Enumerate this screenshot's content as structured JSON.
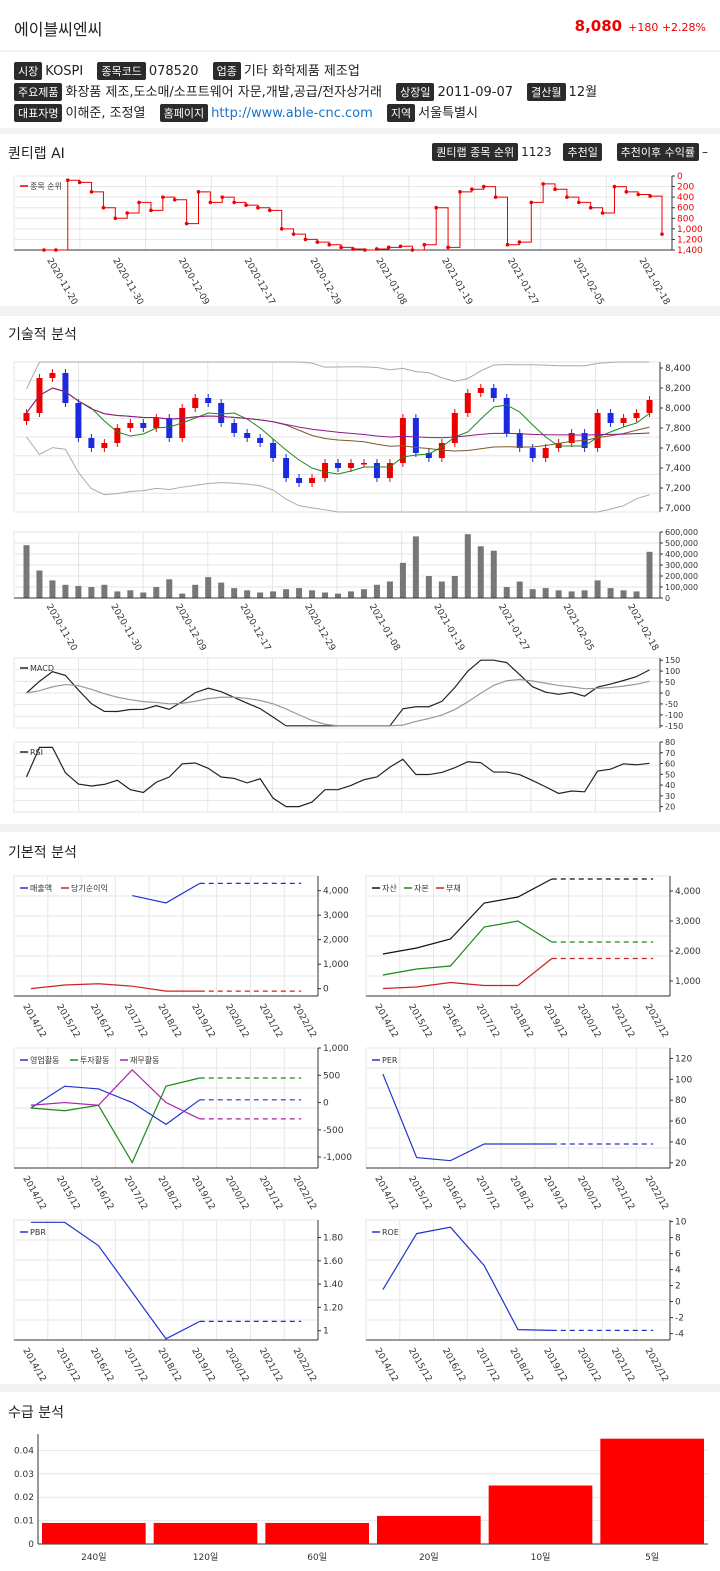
{
  "header": {
    "name": "에이블씨엔씨",
    "price": "8,080",
    "change": "+180 +2.28%"
  },
  "info": {
    "market_label": "시장",
    "market": "KOSPI",
    "code_label": "종목코드",
    "code": "078520",
    "industry_label": "업종",
    "industry": "기타 화학제품 제조업",
    "products_label": "주요제품",
    "products": "화장품 제조,도소매/소프트웨어 자문,개발,공급/전자상거래",
    "listed_label": "상장일",
    "listed": "2011-09-07",
    "fiscal_label": "결산월",
    "fiscal": "12월",
    "ceo_label": "대표자명",
    "ceo": "이해준, 조정열",
    "homepage_label": "홈페이지",
    "homepage": "http://www.able-cnc.com",
    "region_label": "지역",
    "region": "서울특별시"
  },
  "quant": {
    "title": "퀀티랩 AI",
    "rank_label": "퀀티랩 종목 순위",
    "rank": "1123",
    "rec_date_label": "추천일",
    "rec_return_label": "추천이후 수익률",
    "rec_return": "–"
  },
  "sections": {
    "tech": "기술적 분석",
    "fund": "기본적 분석",
    "supply": "수급 분석"
  },
  "dates": [
    "2020-11-20",
    "2020-11-30",
    "2020-12-09",
    "2020-12-17",
    "2020-12-29",
    "2021-01-08",
    "2021-01-19",
    "2021-01-27",
    "2021-02-05",
    "2021-02-18"
  ],
  "years": [
    "2014/12",
    "2015/12",
    "2016/12",
    "2017/12",
    "2018/12",
    "2019/12",
    "2020/12",
    "2021/12",
    "2022/12"
  ],
  "chart_data": [
    {
      "type": "line",
      "legend": [
        "종목 순위"
      ],
      "y_ticks": [
        "0",
        "200",
        "400",
        "600",
        "800",
        "1,000",
        "1,200",
        "1,400"
      ],
      "ylim": [
        0,
        1400
      ],
      "inverted": true,
      "series": [
        {
          "name": "종목 순위",
          "values": [
            1400,
            1450,
            80,
            120,
            300,
            600,
            800,
            700,
            500,
            650,
            400,
            450,
            900,
            300,
            500,
            400,
            500,
            550,
            600,
            650,
            1000,
            1100,
            1200,
            1250,
            1300,
            1350,
            1380,
            1400,
            1380,
            1350,
            1330,
            1400,
            1300,
            600,
            1350,
            300,
            250,
            200,
            400,
            1300,
            1250,
            500,
            150,
            250,
            400,
            500,
            600,
            700,
            200,
            300,
            350,
            380,
            1100
          ]
        }
      ]
    },
    {
      "type": "candlestick",
      "y_ticks": [
        "7,000",
        "7,200",
        "7,400",
        "7,600",
        "7,800",
        "8,000",
        "8,200",
        "8,400"
      ],
      "ylim": [
        6960,
        8460
      ],
      "closes": [
        7950,
        8300,
        8350,
        8050,
        7700,
        7600,
        7650,
        7800,
        7850,
        7800,
        7900,
        7700,
        8000,
        8100,
        8050,
        7850,
        7750,
        7700,
        7650,
        7500,
        7300,
        7250,
        7300,
        7450,
        7400,
        7450,
        7450,
        7300,
        7450,
        7900,
        7550,
        7500,
        7650,
        7950,
        8150,
        8200,
        8100,
        7750,
        7600,
        7500,
        7600,
        7650,
        7750,
        7600,
        7950,
        7850,
        7900,
        7950,
        8080
      ],
      "volume_ticks": [
        "0",
        "100,000",
        "200,000",
        "300,000",
        "400,000",
        "500,000",
        "600,000"
      ],
      "volumes": [
        480000,
        250000,
        160000,
        120000,
        110000,
        100000,
        120000,
        60000,
        70000,
        50000,
        100000,
        170000,
        40000,
        120000,
        190000,
        140000,
        90000,
        70000,
        50000,
        60000,
        80000,
        90000,
        70000,
        50000,
        40000,
        60000,
        80000,
        120000,
        150000,
        320000,
        560000,
        200000,
        150000,
        200000,
        580000,
        470000,
        430000,
        100000,
        150000,
        80000,
        90000,
        70000,
        60000,
        70000,
        160000,
        90000,
        70000,
        60000,
        420000
      ]
    },
    {
      "type": "line",
      "legend": [
        "MACD"
      ],
      "y_ticks": [
        "-150",
        "-100",
        "-50",
        "0",
        "50",
        "100",
        "150"
      ],
      "ylim": [
        -160,
        160
      ]
    },
    {
      "type": "line",
      "legend": [
        "RSI"
      ],
      "y_ticks": [
        "20",
        "30",
        "40",
        "50",
        "60",
        "70",
        "80"
      ],
      "ylim": [
        15,
        80
      ]
    },
    {
      "type": "line",
      "legend": [
        "매출액",
        "당기순이익"
      ],
      "colors": [
        "#2233cc",
        "#cc2222"
      ],
      "y_ticks": [
        "0",
        "1,000",
        "2,000",
        "3,000",
        "4,000"
      ],
      "ylim": [
        -300,
        4600
      ],
      "series": [
        {
          "name": "매출액",
          "values": [
            null,
            null,
            null,
            3800,
            3500,
            4300,
            4300,
            4300,
            4300
          ]
        },
        {
          "name": "당기순이익",
          "values": [
            0,
            150,
            200,
            100,
            -100,
            -100,
            -100,
            -100,
            -100
          ]
        }
      ]
    },
    {
      "type": "line",
      "legend": [
        "자산",
        "자본",
        "부채"
      ],
      "colors": [
        "#111111",
        "#1a8a1a",
        "#cc2222"
      ],
      "y_ticks": [
        "1,000",
        "2,000",
        "3,000",
        "4,000"
      ],
      "ylim": [
        500,
        4500
      ],
      "series": [
        {
          "name": "자산",
          "values": [
            1900,
            2100,
            2400,
            3600,
            3800,
            4400,
            4400,
            4400,
            4400
          ]
        },
        {
          "name": "자본",
          "values": [
            1200,
            1400,
            1500,
            2800,
            3000,
            2300,
            2300,
            2300,
            2300
          ]
        },
        {
          "name": "부채",
          "values": [
            750,
            800,
            950,
            850,
            850,
            1750,
            1750,
            1750,
            1750
          ]
        }
      ]
    },
    {
      "type": "line",
      "legend": [
        "영업활동",
        "투자활동",
        "재무활동"
      ],
      "colors": [
        "#2233cc",
        "#1a8a1a",
        "#aa22aa"
      ],
      "y_ticks": [
        "-1,000",
        "-500",
        "0",
        "500",
        "1,000"
      ],
      "ylim": [
        -1200,
        1000
      ],
      "series": [
        {
          "name": "영업활동",
          "values": [
            -100,
            300,
            250,
            0,
            -400,
            50,
            50,
            50,
            50
          ]
        },
        {
          "name": "투자활동",
          "values": [
            -100,
            -150,
            -50,
            -1100,
            300,
            450,
            450,
            450,
            450
          ]
        },
        {
          "name": "재무활동",
          "values": [
            -50,
            0,
            -50,
            600,
            0,
            -300,
            -300,
            -300,
            -300
          ]
        }
      ]
    },
    {
      "type": "line",
      "legend": [
        "PER"
      ],
      "colors": [
        "#2233cc"
      ],
      "y_ticks": [
        "20",
        "40",
        "60",
        "80",
        "100",
        "120"
      ],
      "ylim": [
        15,
        130
      ],
      "series": [
        {
          "name": "PER",
          "values": [
            105,
            25,
            22,
            38,
            38,
            38,
            38,
            38,
            38
          ]
        }
      ]
    },
    {
      "type": "line",
      "legend": [
        "PBR"
      ],
      "colors": [
        "#2233cc"
      ],
      "y_ticks": [
        "1",
        "1.20",
        "1.40",
        "1.60",
        "1.80"
      ],
      "ylim": [
        0.92,
        1.95
      ],
      "series": [
        {
          "name": "PBR",
          "values": [
            1.93,
            1.93,
            1.73,
            1.33,
            0.93,
            1.08,
            1.08,
            1.08,
            1.08
          ]
        }
      ]
    },
    {
      "type": "line",
      "legend": [
        "ROE"
      ],
      "colors": [
        "#2233cc"
      ],
      "y_ticks": [
        "-4",
        "-2",
        "0",
        "2",
        "4",
        "6",
        "8",
        "10"
      ],
      "ylim": [
        -4.8,
        10.2
      ],
      "series": [
        {
          "name": "ROE",
          "values": [
            1.5,
            8.5,
            9.3,
            4.5,
            -3.5,
            -3.6,
            -3.6,
            -3.6,
            -3.6
          ]
        }
      ]
    },
    {
      "type": "bar",
      "categories": [
        "240일",
        "120일",
        "60일",
        "20일",
        "10일",
        "5일"
      ],
      "values": [
        0.009,
        0.009,
        0.009,
        0.012,
        0.025,
        0.045
      ],
      "y_ticks": [
        "0",
        "0.01",
        "0.02",
        "0.03",
        "0.04"
      ],
      "ylim": [
        0,
        0.047
      ],
      "color": "#ff0000"
    }
  ]
}
